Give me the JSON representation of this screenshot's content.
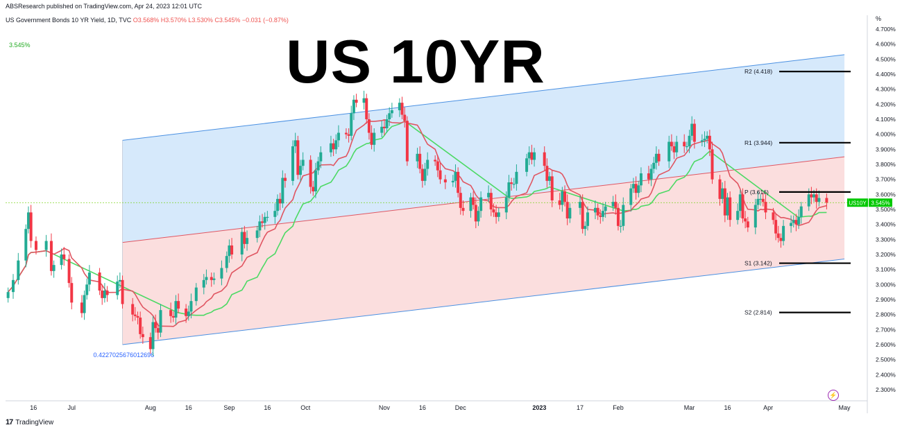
{
  "header": {
    "published": "ABSResearch published on TradingView.com, Apr 24, 2023 12:01 UTC",
    "symbol_name": "US Government Bonds 10 YR Yield, 1D, TVC",
    "ohlc": "O3.568% H3.570% L3.530% C3.545% −0.031 (−0.87%)"
  },
  "overlay": {
    "title": "US 10YR",
    "last_value_label": "3.545%",
    "channel_label": "0.4227025676012696"
  },
  "footer": {
    "brand": "TradingView"
  },
  "colors": {
    "up": "#22ab94",
    "down": "#f23645",
    "ma_green": "#4cd964",
    "ma_red": "#e05561",
    "upper_fill": "#d6e9fb",
    "lower_fill": "#fbdede",
    "channel_line": "#4a90e2",
    "tag": "#00c800"
  },
  "chart_data": {
    "type": "candlestick",
    "title": "US 10YR",
    "y_unit": "%",
    "ylim": [
      2.25,
      4.75
    ],
    "y_ticks": [
      "2.300%",
      "2.400%",
      "2.500%",
      "2.600%",
      "2.700%",
      "2.800%",
      "2.900%",
      "3.000%",
      "3.100%",
      "3.200%",
      "3.300%",
      "3.400%",
      "3.500%",
      "3.600%",
      "3.700%",
      "3.800%",
      "3.900%",
      "4.000%",
      "4.100%",
      "4.200%",
      "4.300%",
      "4.400%",
      "4.500%",
      "4.600%",
      "4.700%"
    ],
    "x_ticks": [
      {
        "label": "16",
        "date": "2022-06-16"
      },
      {
        "label": "Jul",
        "date": "2022-07-01"
      },
      {
        "label": "Aug",
        "date": "2022-08-01"
      },
      {
        "label": "16",
        "date": "2022-08-16"
      },
      {
        "label": "Sep",
        "date": "2022-09-01"
      },
      {
        "label": "16",
        "date": "2022-09-16"
      },
      {
        "label": "Oct",
        "date": "2022-10-01"
      },
      {
        "label": "Nov",
        "date": "2022-11-01"
      },
      {
        "label": "16",
        "date": "2022-11-16"
      },
      {
        "label": "Dec",
        "date": "2022-12-01"
      },
      {
        "label": "2023",
        "date": "2023-01-01"
      },
      {
        "label": "17",
        "date": "2023-01-17"
      },
      {
        "label": "Feb",
        "date": "2023-02-01"
      },
      {
        "label": "Mar",
        "date": "2023-03-01"
      },
      {
        "label": "16",
        "date": "2023-03-16"
      },
      {
        "label": "Apr",
        "date": "2023-04-01"
      },
      {
        "label": "May",
        "date": "2023-05-01"
      }
    ],
    "close_series": [
      [
        "2022-06-06",
        2.95
      ],
      [
        "2022-06-08",
        3.03
      ],
      [
        "2022-06-10",
        3.16
      ],
      [
        "2022-06-13",
        3.37
      ],
      [
        "2022-06-14",
        3.48
      ],
      [
        "2022-06-15",
        3.29
      ],
      [
        "2022-06-17",
        3.23
      ],
      [
        "2022-06-21",
        3.29
      ],
      [
        "2022-06-23",
        3.09
      ],
      [
        "2022-06-24",
        3.13
      ],
      [
        "2022-06-27",
        3.2
      ],
      [
        "2022-06-28",
        3.17
      ],
      [
        "2022-06-30",
        3.01
      ],
      [
        "2022-07-01",
        2.88
      ],
      [
        "2022-07-05",
        2.81
      ],
      [
        "2022-07-06",
        2.93
      ],
      [
        "2022-07-07",
        3.0
      ],
      [
        "2022-07-08",
        3.08
      ],
      [
        "2022-07-12",
        2.96
      ],
      [
        "2022-07-13",
        2.91
      ],
      [
        "2022-07-14",
        2.96
      ],
      [
        "2022-07-15",
        2.93
      ],
      [
        "2022-07-19",
        3.02
      ],
      [
        "2022-07-20",
        3.03
      ],
      [
        "2022-07-21",
        2.87
      ],
      [
        "2022-07-25",
        2.8
      ],
      [
        "2022-07-26",
        2.79
      ],
      [
        "2022-07-27",
        2.78
      ],
      [
        "2022-07-28",
        2.67
      ],
      [
        "2022-07-29",
        2.65
      ],
      [
        "2022-08-01",
        2.57
      ],
      [
        "2022-08-02",
        2.75
      ],
      [
        "2022-08-03",
        2.71
      ],
      [
        "2022-08-04",
        2.68
      ],
      [
        "2022-08-05",
        2.83
      ],
      [
        "2022-08-09",
        2.79
      ],
      [
        "2022-08-10",
        2.78
      ],
      [
        "2022-08-11",
        2.89
      ],
      [
        "2022-08-12",
        2.84
      ],
      [
        "2022-08-15",
        2.79
      ],
      [
        "2022-08-16",
        2.82
      ],
      [
        "2022-08-17",
        2.89
      ],
      [
        "2022-08-19",
        2.98
      ],
      [
        "2022-08-22",
        3.03
      ],
      [
        "2022-08-23",
        3.05
      ],
      [
        "2022-08-25",
        3.03
      ],
      [
        "2022-08-26",
        3.04
      ],
      [
        "2022-08-29",
        3.11
      ],
      [
        "2022-08-31",
        3.19
      ],
      [
        "2022-09-01",
        3.26
      ],
      [
        "2022-09-02",
        3.2
      ],
      [
        "2022-09-06",
        3.35
      ],
      [
        "2022-09-07",
        3.27
      ],
      [
        "2022-09-08",
        3.31
      ],
      [
        "2022-09-12",
        3.36
      ],
      [
        "2022-09-13",
        3.42
      ],
      [
        "2022-09-14",
        3.41
      ],
      [
        "2022-09-15",
        3.45
      ],
      [
        "2022-09-16",
        3.45
      ],
      [
        "2022-09-19",
        3.49
      ],
      [
        "2022-09-20",
        3.57
      ],
      [
        "2022-09-21",
        3.54
      ],
      [
        "2022-09-22",
        3.71
      ],
      [
        "2022-09-23",
        3.69
      ],
      [
        "2022-09-26",
        3.92
      ],
      [
        "2022-09-27",
        3.96
      ],
      [
        "2022-09-28",
        3.73
      ],
      [
        "2022-09-29",
        3.79
      ],
      [
        "2022-09-30",
        3.83
      ],
      [
        "2022-10-03",
        3.65
      ],
      [
        "2022-10-04",
        3.62
      ],
      [
        "2022-10-05",
        3.76
      ],
      [
        "2022-10-06",
        3.82
      ],
      [
        "2022-10-07",
        3.88
      ],
      [
        "2022-10-11",
        3.94
      ],
      [
        "2022-10-12",
        3.9
      ],
      [
        "2022-10-13",
        3.96
      ],
      [
        "2022-10-14",
        4.01
      ],
      [
        "2022-10-17",
        4.0
      ],
      [
        "2022-10-18",
        3.99
      ],
      [
        "2022-10-19",
        4.14
      ],
      [
        "2022-10-20",
        4.23
      ],
      [
        "2022-10-21",
        4.21
      ],
      [
        "2022-10-24",
        4.24
      ],
      [
        "2022-10-25",
        4.1
      ],
      [
        "2022-10-26",
        4.01
      ],
      [
        "2022-10-27",
        3.93
      ],
      [
        "2022-10-28",
        4.01
      ],
      [
        "2022-10-31",
        4.05
      ],
      [
        "2022-11-01",
        4.04
      ],
      [
        "2022-11-02",
        4.1
      ],
      [
        "2022-11-03",
        4.14
      ],
      [
        "2022-11-04",
        4.16
      ],
      [
        "2022-11-07",
        4.21
      ],
      [
        "2022-11-08",
        4.13
      ],
      [
        "2022-11-09",
        4.09
      ],
      [
        "2022-11-10",
        3.82
      ],
      [
        "2022-11-14",
        3.87
      ],
      [
        "2022-11-15",
        3.77
      ],
      [
        "2022-11-16",
        3.69
      ],
      [
        "2022-11-17",
        3.77
      ],
      [
        "2022-11-18",
        3.83
      ],
      [
        "2022-11-21",
        3.82
      ],
      [
        "2022-11-22",
        3.76
      ],
      [
        "2022-11-23",
        3.7
      ],
      [
        "2022-11-25",
        3.68
      ],
      [
        "2022-11-28",
        3.69
      ],
      [
        "2022-11-29",
        3.75
      ],
      [
        "2022-11-30",
        3.61
      ],
      [
        "2022-12-01",
        3.51
      ],
      [
        "2022-12-02",
        3.49
      ],
      [
        "2022-12-05",
        3.58
      ],
      [
        "2022-12-06",
        3.53
      ],
      [
        "2022-12-07",
        3.42
      ],
      [
        "2022-12-08",
        3.49
      ],
      [
        "2022-12-09",
        3.58
      ],
      [
        "2022-12-12",
        3.61
      ],
      [
        "2022-12-13",
        3.5
      ],
      [
        "2022-12-14",
        3.48
      ],
      [
        "2022-12-15",
        3.45
      ],
      [
        "2022-12-16",
        3.48
      ],
      [
        "2022-12-19",
        3.58
      ],
      [
        "2022-12-20",
        3.68
      ],
      [
        "2022-12-21",
        3.67
      ],
      [
        "2022-12-22",
        3.67
      ],
      [
        "2022-12-23",
        3.75
      ],
      [
        "2022-12-27",
        3.84
      ],
      [
        "2022-12-28",
        3.88
      ],
      [
        "2022-12-29",
        3.83
      ],
      [
        "2022-12-30",
        3.88
      ],
      [
        "2023-01-03",
        3.79
      ],
      [
        "2023-01-04",
        3.69
      ],
      [
        "2023-01-05",
        3.72
      ],
      [
        "2023-01-06",
        3.56
      ],
      [
        "2023-01-09",
        3.53
      ],
      [
        "2023-01-10",
        3.62
      ],
      [
        "2023-01-11",
        3.55
      ],
      [
        "2023-01-12",
        3.44
      ],
      [
        "2023-01-13",
        3.51
      ],
      [
        "2023-01-17",
        3.55
      ],
      [
        "2023-01-18",
        3.37
      ],
      [
        "2023-01-19",
        3.39
      ],
      [
        "2023-01-20",
        3.48
      ],
      [
        "2023-01-23",
        3.51
      ],
      [
        "2023-01-24",
        3.46
      ],
      [
        "2023-01-25",
        3.45
      ],
      [
        "2023-01-26",
        3.49
      ],
      [
        "2023-01-27",
        3.52
      ],
      [
        "2023-01-30",
        3.55
      ],
      [
        "2023-01-31",
        3.51
      ],
      [
        "2023-02-01",
        3.39
      ],
      [
        "2023-02-02",
        3.39
      ],
      [
        "2023-02-03",
        3.53
      ],
      [
        "2023-02-06",
        3.64
      ],
      [
        "2023-02-07",
        3.67
      ],
      [
        "2023-02-08",
        3.61
      ],
      [
        "2023-02-09",
        3.66
      ],
      [
        "2023-02-10",
        3.74
      ],
      [
        "2023-02-13",
        3.7
      ],
      [
        "2023-02-14",
        3.77
      ],
      [
        "2023-02-15",
        3.81
      ],
      [
        "2023-02-16",
        3.87
      ],
      [
        "2023-02-17",
        3.82
      ],
      [
        "2023-02-21",
        3.95
      ],
      [
        "2023-02-22",
        3.92
      ],
      [
        "2023-02-23",
        3.88
      ],
      [
        "2023-02-24",
        3.95
      ],
      [
        "2023-02-27",
        3.92
      ],
      [
        "2023-02-28",
        3.92
      ],
      [
        "2023-03-01",
        3.99
      ],
      [
        "2023-03-02",
        4.07
      ],
      [
        "2023-03-03",
        3.95
      ],
      [
        "2023-03-06",
        3.96
      ],
      [
        "2023-03-07",
        3.97
      ],
      [
        "2023-03-08",
        3.99
      ],
      [
        "2023-03-09",
        3.9
      ],
      [
        "2023-03-10",
        3.7
      ],
      [
        "2023-03-13",
        3.57
      ],
      [
        "2023-03-14",
        3.64
      ],
      [
        "2023-03-15",
        3.46
      ],
      [
        "2023-03-16",
        3.58
      ],
      [
        "2023-03-17",
        3.43
      ],
      [
        "2023-03-20",
        3.49
      ],
      [
        "2023-03-21",
        3.6
      ],
      [
        "2023-03-22",
        3.44
      ],
      [
        "2023-03-23",
        3.42
      ],
      [
        "2023-03-24",
        3.38
      ],
      [
        "2023-03-27",
        3.53
      ],
      [
        "2023-03-28",
        3.57
      ],
      [
        "2023-03-29",
        3.57
      ],
      [
        "2023-03-30",
        3.55
      ],
      [
        "2023-03-31",
        3.48
      ],
      [
        "2023-04-03",
        3.43
      ],
      [
        "2023-04-04",
        3.34
      ],
      [
        "2023-04-05",
        3.31
      ],
      [
        "2023-04-06",
        3.29
      ],
      [
        "2023-04-07",
        3.39
      ],
      [
        "2023-04-10",
        3.41
      ],
      [
        "2023-04-11",
        3.43
      ],
      [
        "2023-04-12",
        3.4
      ],
      [
        "2023-04-13",
        3.45
      ],
      [
        "2023-04-14",
        3.52
      ],
      [
        "2023-04-17",
        3.6
      ],
      [
        "2023-04-18",
        3.58
      ],
      [
        "2023-04-19",
        3.6
      ],
      [
        "2023-04-20",
        3.55
      ],
      [
        "2023-04-21",
        3.576
      ],
      [
        "2023-04-24",
        3.545
      ]
    ],
    "levels": [
      {
        "label": "R2 (4.418)",
        "value": 4.418
      },
      {
        "label": "R1 (3.944)",
        "value": 3.944
      },
      {
        "label": "P (3.616)",
        "value": 3.616
      },
      {
        "label": "S1 (3.142)",
        "value": 3.142
      },
      {
        "label": "S2 (2.814)",
        "value": 2.814
      }
    ],
    "channel": {
      "start_date": "2022-07-21",
      "end_date": "2023-05-01",
      "upper": [
        3.96,
        4.53
      ],
      "middle": [
        3.28,
        3.85
      ],
      "lower": [
        2.6,
        3.17
      ]
    },
    "last_price": {
      "value": 3.545,
      "label": "3.545%",
      "symbol": "US10Y"
    }
  }
}
